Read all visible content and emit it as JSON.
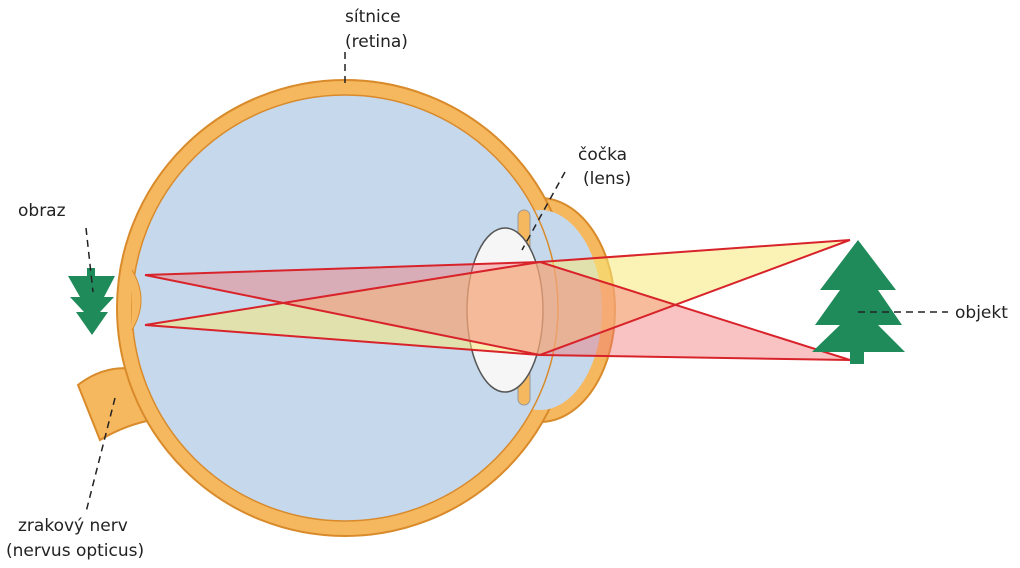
{
  "labels": {
    "retina": [
      "sítnice",
      "(retina)"
    ],
    "lens": [
      "čočka",
      "(lens)"
    ],
    "image": [
      "obraz"
    ],
    "object": [
      "objekt"
    ],
    "nerve": [
      "zrakový nerv",
      "(nervus opticus)"
    ]
  }
}
